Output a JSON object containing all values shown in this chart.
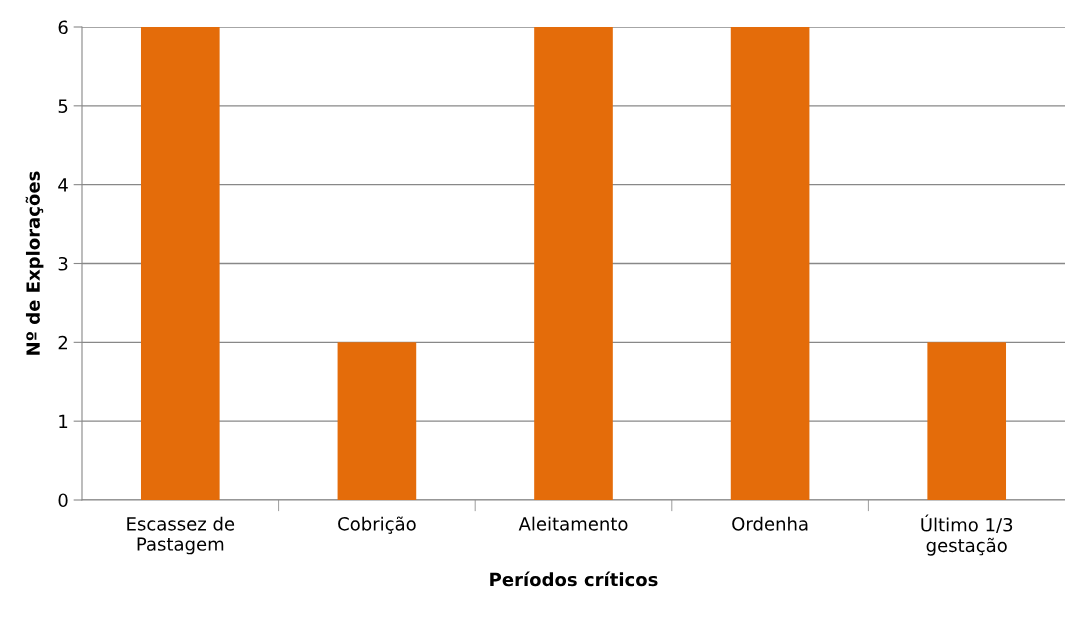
{
  "chart_data": {
    "type": "bar",
    "xlabel": "Períodos críticos",
    "ylabel": "Nº de Explorações",
    "categories": [
      "Escassez de\nPastagem",
      "Cobrição",
      "Aleitamento",
      "Ordenha",
      "Último 1/3\ngestação"
    ],
    "values": [
      6,
      2,
      6,
      6,
      2
    ],
    "color": "#e46c0a",
    "ylim": [
      0,
      6
    ],
    "yticks": [
      0,
      1,
      2,
      3,
      4,
      5,
      6
    ],
    "grid": "y",
    "legend": false
  }
}
